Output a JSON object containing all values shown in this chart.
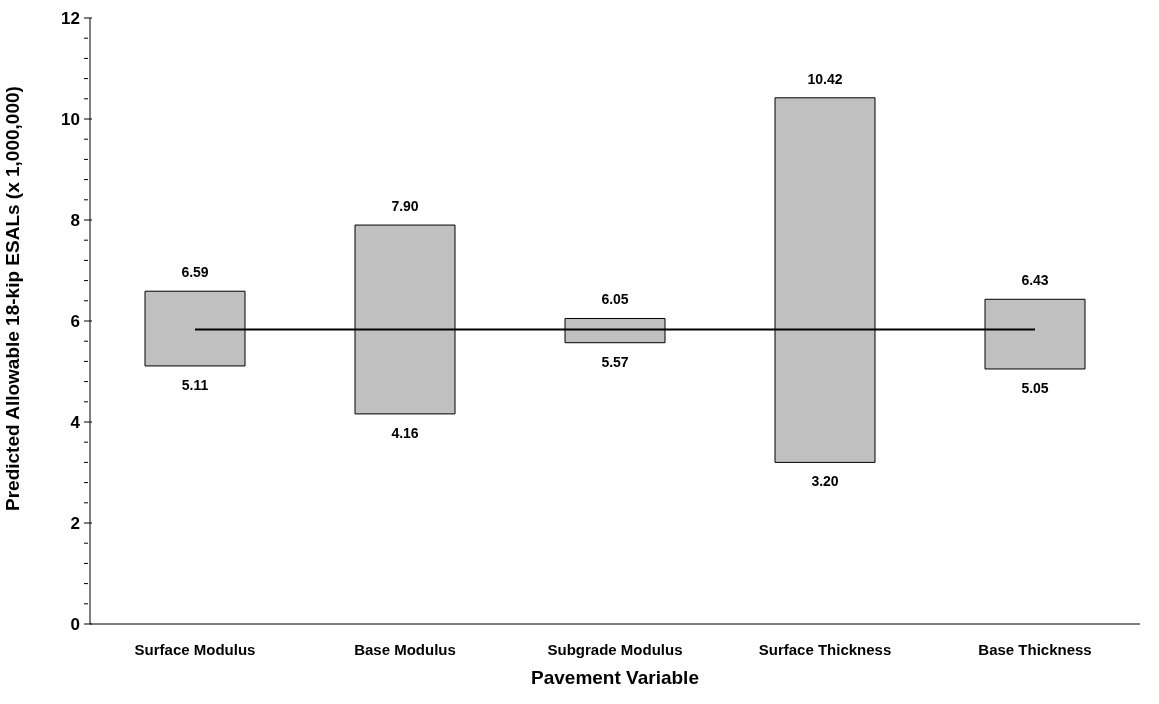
{
  "chart_data": {
    "type": "bar",
    "xlabel": "Pavement Variable",
    "ylabel": "Predicted Allowable 18-kip ESALs (x 1,000,000)",
    "categories": [
      "Surface Modulus",
      "Base Modulus",
      "Subgrade Modulus",
      "Surface Thickness",
      "Base Thickness"
    ],
    "series": [
      {
        "color": "#c0c0c0",
        "base": [
          5.11,
          4.16,
          5.57,
          3.2,
          5.05
        ],
        "values": [
          1.48,
          3.74,
          0.48,
          7.22,
          1.38
        ]
      },
      {
        "type": "line",
        "color": "#000000",
        "values": [
          5.83,
          5.83,
          5.83,
          5.83,
          5.83
        ]
      }
    ],
    "ylim": [
      0,
      12
    ],
    "yticks": [
      0,
      {
        "value": 0.4,
        "label": null
      },
      {
        "value": 0.8,
        "label": null
      },
      {
        "value": 1.2,
        "label": null
      },
      {
        "value": 1.6,
        "label": null
      },
      2,
      {
        "value": 2.4,
        "label": null
      },
      {
        "value": 2.8,
        "label": null
      },
      {
        "value": 3.2,
        "label": null
      },
      {
        "value": 3.6,
        "label": null
      },
      4,
      {
        "value": 4.4,
        "label": null
      },
      {
        "value": 4.8,
        "label": null
      },
      {
        "value": 5.2,
        "label": null
      },
      {
        "value": 5.6,
        "label": null
      },
      6,
      {
        "value": 6.4,
        "label": null
      },
      {
        "value": 6.8,
        "label": null
      },
      {
        "value": 7.2,
        "label": null
      },
      {
        "value": 7.6,
        "label": null
      },
      8,
      {
        "value": 8.4,
        "label": null
      },
      {
        "value": 8.8,
        "label": null
      },
      {
        "value": 9.2,
        "label": null
      },
      {
        "value": 9.6,
        "label": null
      },
      10,
      {
        "value": 10.4,
        "label": null
      },
      {
        "value": 10.8,
        "label": null
      },
      {
        "value": 11.2,
        "label": null
      },
      {
        "value": 11.6,
        "label": null
      },
      12
    ],
    "annotations": [
      {
        "text": "6.59",
        "x": "Surface Modulus",
        "y": 6.59
      },
      {
        "text": "5.11",
        "x": "Surface Modulus",
        "y": 5.11
      },
      {
        "text": "7.90",
        "x": "Base Modulus",
        "y": 7.9
      },
      {
        "text": "4.16",
        "x": "Base Modulus",
        "y": 4.16
      },
      {
        "text": "6.05",
        "x": "Subgrade Modulus",
        "y": 6.05
      },
      {
        "text": "5.57",
        "x": "Subgrade Modulus",
        "y": 5.57
      },
      {
        "text": "10.42",
        "x": "Surface Thickness",
        "y": 10.42
      },
      {
        "text": "3.20",
        "x": "Surface Thickness",
        "y": 3.2
      },
      {
        "text": "6.43",
        "x": "Base Thickness",
        "y": 6.43
      },
      {
        "text": "5.05",
        "x": "Base Thickness",
        "y": 5.05
      }
    ],
    "grid": false,
    "legend": false,
    "marker": "none",
    "line_style": "solid"
  }
}
